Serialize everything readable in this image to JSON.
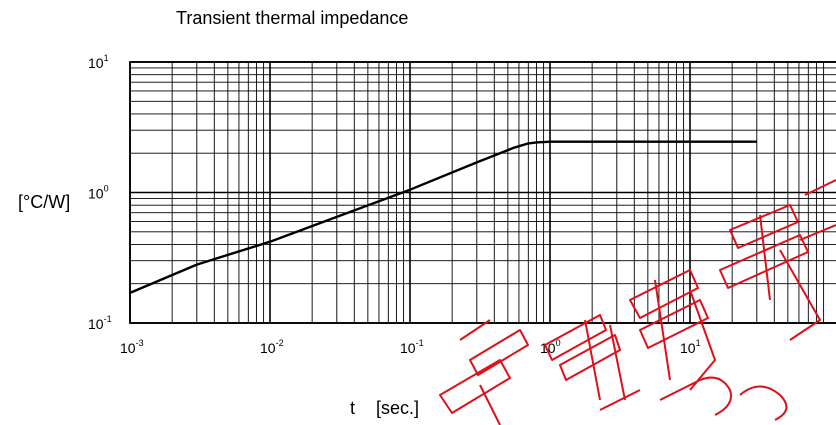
{
  "chart_data": {
    "type": "line",
    "title": "Transient thermal impedance",
    "ylabel": "[°C/W]",
    "xlabel": "t",
    "xunit": "[sec.]",
    "x_scale": "log",
    "y_scale": "log",
    "xlim": [
      0.001,
      30
    ],
    "ylim": [
      0.1,
      10
    ],
    "grid": true,
    "x_ticks": [
      {
        "base": "10",
        "exp": "-3",
        "value": 0.001
      },
      {
        "base": "10",
        "exp": "-2",
        "value": 0.01
      },
      {
        "base": "10",
        "exp": "-1",
        "value": 0.1
      },
      {
        "base": "10",
        "exp": "0",
        "value": 1
      },
      {
        "base": "10",
        "exp": "1",
        "value": 10
      }
    ],
    "y_ticks": [
      {
        "base": "10",
        "exp": "1",
        "value": 10
      },
      {
        "base": "10",
        "exp": "0",
        "value": 1
      },
      {
        "base": "10",
        "exp": "-1",
        "value": 0.1
      }
    ],
    "series": [
      {
        "x": [
          0.001,
          0.003,
          0.01,
          0.03,
          0.1,
          0.3,
          0.55,
          0.7,
          0.8,
          1,
          3,
          10,
          30
        ],
        "y": [
          0.17,
          0.28,
          0.42,
          0.65,
          1.05,
          1.7,
          2.2,
          2.38,
          2.42,
          2.45,
          2.45,
          2.45,
          2.45
        ]
      }
    ]
  },
  "watermark_colors": {
    "stroke": "#e0101a"
  }
}
